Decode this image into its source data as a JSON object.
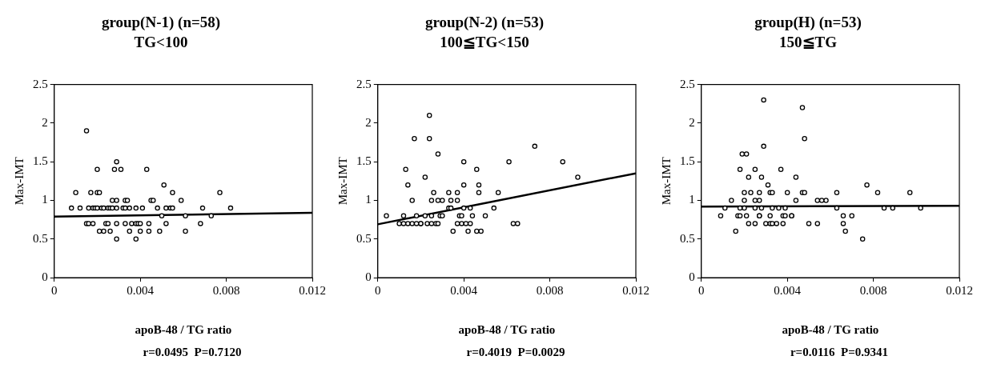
{
  "chart_data": [
    {
      "type": "scatter",
      "title": "group(N-1) (n=58)",
      "subtitle": "TG<100",
      "xlabel": "apoB-48 / TG ratio",
      "ylabel": "Max-IMT",
      "annotations": [
        "r=0.0495  P=0.7120"
      ],
      "xlim": [
        0,
        0.012
      ],
      "xticks": [
        0,
        0.004,
        0.008,
        0.012
      ],
      "ylim": [
        0,
        2.5
      ],
      "yticks": [
        0,
        0.5,
        1,
        1.5,
        2,
        2.5
      ],
      "grid": false,
      "legend": false,
      "marker": "circle",
      "series": [
        {
          "type": "scatter",
          "color": "#000000",
          "x": [
            0.0015,
            0.0029,
            0.002,
            0.0028,
            0.0031,
            0.0043,
            0.0051,
            0.001,
            0.0017,
            0.002,
            0.0021,
            0.0055,
            0.0077,
            0.0027,
            0.0029,
            0.0033,
            0.0034,
            0.0045,
            0.0046,
            0.0059,
            0.0008,
            0.0012,
            0.0016,
            0.0018,
            0.0019,
            0.002,
            0.0022,
            0.0023,
            0.0025,
            0.0026,
            0.0027,
            0.0029,
            0.0032,
            0.0033,
            0.0035,
            0.0038,
            0.0041,
            0.0048,
            0.0052,
            0.0054,
            0.0055,
            0.0069,
            0.0082,
            0.005,
            0.0061,
            0.0073,
            0.0015,
            0.0016,
            0.0018,
            0.0024,
            0.0025,
            0.0029,
            0.0033,
            0.0036,
            0.0038,
            0.0039,
            0.004,
            0.0044,
            0.0052,
            0.0068,
            0.0021,
            0.0023,
            0.0026,
            0.0035,
            0.004,
            0.0044,
            0.0049,
            0.0061,
            0.0029,
            0.0038
          ],
          "values": [
            1.9,
            1.5,
            1.4,
            1.4,
            1.4,
            1.4,
            1.2,
            1.1,
            1.1,
            1.1,
            1.1,
            1.1,
            1.1,
            1,
            1,
            1,
            1,
            1,
            1,
            1,
            0.9,
            0.9,
            0.9,
            0.9,
            0.9,
            0.9,
            0.9,
            0.9,
            0.9,
            0.9,
            0.9,
            0.9,
            0.9,
            0.9,
            0.9,
            0.9,
            0.9,
            0.9,
            0.9,
            0.9,
            0.9,
            0.9,
            0.9,
            0.8,
            0.8,
            0.8,
            0.7,
            0.7,
            0.7,
            0.7,
            0.7,
            0.7,
            0.7,
            0.7,
            0.7,
            0.7,
            0.7,
            0.7,
            0.7,
            0.7,
            0.6,
            0.6,
            0.6,
            0.6,
            0.6,
            0.6,
            0.6,
            0.6,
            0.5,
            0.5
          ]
        },
        {
          "type": "line",
          "color": "#000000",
          "marker": "none",
          "x": [
            0,
            0.012
          ],
          "values": [
            0.79,
            0.84
          ]
        }
      ]
    },
    {
      "type": "scatter",
      "title": "group(N-2) (n=53)",
      "subtitle": "100≦TG<150",
      "xlabel": "apoB-48 / TG ratio",
      "ylabel": "Max-IMT",
      "annotations": [
        "r=0.4019  P=0.0029"
      ],
      "xlim": [
        0,
        0.012
      ],
      "xticks": [
        0,
        0.004,
        0.008,
        0.012
      ],
      "ylim": [
        0,
        2.5
      ],
      "yticks": [
        0,
        0.5,
        1,
        1.5,
        2,
        2.5
      ],
      "grid": false,
      "legend": false,
      "marker": "circle",
      "series": [
        {
          "type": "scatter",
          "color": "#000000",
          "x": [
            0.0024,
            0.0017,
            0.0024,
            0.0073,
            0.0028,
            0.004,
            0.0061,
            0.0086,
            0.0013,
            0.0046,
            0.0022,
            0.0093,
            0.0014,
            0.004,
            0.0047,
            0.0026,
            0.0033,
            0.0037,
            0.0047,
            0.0056,
            0.0016,
            0.0025,
            0.0028,
            0.003,
            0.0034,
            0.0037,
            0.0033,
            0.0034,
            0.004,
            0.0043,
            0.0054,
            0.0004,
            0.0012,
            0.0018,
            0.0022,
            0.0025,
            0.0029,
            0.003,
            0.0038,
            0.0039,
            0.0044,
            0.005,
            0.001,
            0.0012,
            0.0014,
            0.0016,
            0.0018,
            0.002,
            0.002,
            0.0023,
            0.0025,
            0.0027,
            0.0028,
            0.0037,
            0.0039,
            0.0041,
            0.0043,
            0.0063,
            0.0065,
            0.0035,
            0.0042,
            0.0046,
            0.0048
          ],
          "values": [
            2.1,
            1.8,
            1.8,
            1.7,
            1.6,
            1.5,
            1.5,
            1.5,
            1.4,
            1.4,
            1.3,
            1.3,
            1.2,
            1.2,
            1.2,
            1.1,
            1.1,
            1.1,
            1.1,
            1.1,
            1,
            1,
            1,
            1,
            1,
            1,
            0.9,
            0.9,
            0.9,
            0.9,
            0.9,
            0.8,
            0.8,
            0.8,
            0.8,
            0.8,
            0.8,
            0.8,
            0.8,
            0.8,
            0.8,
            0.8,
            0.7,
            0.7,
            0.7,
            0.7,
            0.7,
            0.7,
            0.7,
            0.7,
            0.7,
            0.7,
            0.7,
            0.7,
            0.7,
            0.7,
            0.7,
            0.7,
            0.7,
            0.6,
            0.6,
            0.6,
            0.6
          ]
        },
        {
          "type": "line",
          "color": "#000000",
          "marker": "none",
          "x": [
            0,
            0.012
          ],
          "values": [
            0.69,
            1.35
          ]
        }
      ]
    },
    {
      "type": "scatter",
      "title": "group(H) (n=53)",
      "subtitle": "150≦TG",
      "xlabel": "apoB-48 / TG ratio",
      "ylabel": "Max-IMT",
      "annotations": [
        "r=0.0116  P=0.9341"
      ],
      "xlim": [
        0,
        0.012
      ],
      "xticks": [
        0,
        0.004,
        0.008,
        0.012
      ],
      "ylim": [
        0,
        2.5
      ],
      "yticks": [
        0,
        0.5,
        1,
        1.5,
        2,
        2.5
      ],
      "grid": false,
      "legend": false,
      "marker": "circle",
      "series": [
        {
          "type": "scatter",
          "color": "#000000",
          "x": [
            0.0029,
            0.0047,
            0.0048,
            0.0029,
            0.0019,
            0.0021,
            0.0018,
            0.0025,
            0.0037,
            0.0022,
            0.0028,
            0.0044,
            0.0031,
            0.0077,
            0.002,
            0.0023,
            0.0027,
            0.0032,
            0.0033,
            0.004,
            0.0047,
            0.0048,
            0.0063,
            0.0082,
            0.0097,
            0.0014,
            0.002,
            0.0025,
            0.0027,
            0.0044,
            0.0054,
            0.0056,
            0.0058,
            0.0011,
            0.0018,
            0.002,
            0.0025,
            0.0028,
            0.0033,
            0.0036,
            0.0039,
            0.0063,
            0.0085,
            0.0089,
            0.0102,
            0.0009,
            0.0017,
            0.0018,
            0.0021,
            0.0027,
            0.0027,
            0.0032,
            0.0038,
            0.0039,
            0.0042,
            0.0042,
            0.0066,
            0.007,
            0.0022,
            0.0025,
            0.003,
            0.0032,
            0.0033,
            0.0035,
            0.0038,
            0.005,
            0.0054,
            0.0066,
            0.0016,
            0.0067,
            0.0075
          ],
          "values": [
            2.3,
            2.2,
            1.8,
            1.7,
            1.6,
            1.6,
            1.4,
            1.4,
            1.4,
            1.3,
            1.3,
            1.3,
            1.2,
            1.2,
            1.1,
            1.1,
            1.1,
            1.1,
            1.1,
            1.1,
            1.1,
            1.1,
            1.1,
            1.1,
            1.1,
            1,
            1,
            1,
            1,
            1,
            1,
            1,
            1,
            0.9,
            0.9,
            0.9,
            0.9,
            0.9,
            0.9,
            0.9,
            0.9,
            0.9,
            0.9,
            0.9,
            0.9,
            0.8,
            0.8,
            0.8,
            0.8,
            0.8,
            0.8,
            0.8,
            0.8,
            0.8,
            0.8,
            0.8,
            0.8,
            0.8,
            0.7,
            0.7,
            0.7,
            0.7,
            0.7,
            0.7,
            0.7,
            0.7,
            0.7,
            0.7,
            0.6,
            0.6,
            0.5
          ]
        },
        {
          "type": "line",
          "color": "#000000",
          "marker": "none",
          "x": [
            0,
            0.012
          ],
          "values": [
            0.92,
            0.93
          ]
        }
      ]
    }
  ]
}
